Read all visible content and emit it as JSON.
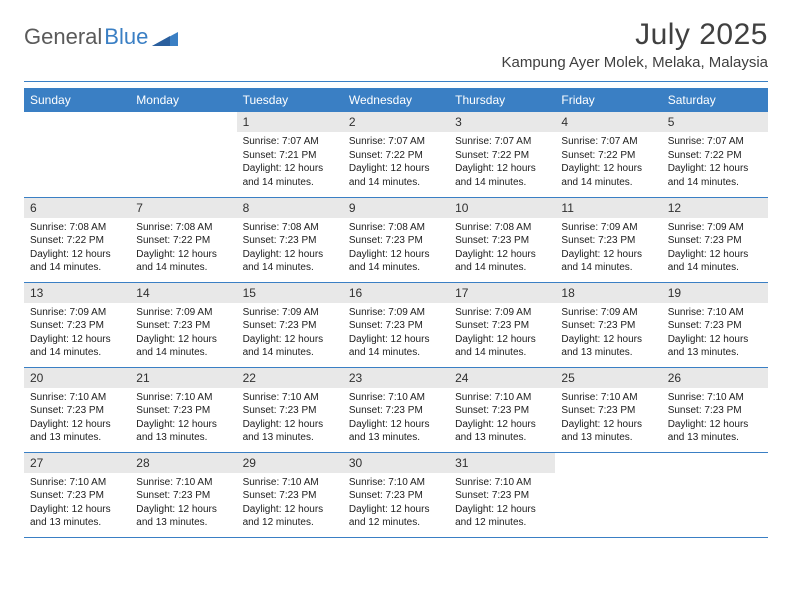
{
  "brand": {
    "part1": "General",
    "part2": "Blue"
  },
  "title": "July 2025",
  "location": "Kampung Ayer Molek, Melaka, Malaysia",
  "colors": {
    "header_bg": "#3a7fc4",
    "header_text": "#ffffff",
    "daynum_bg": "#e8e8e8",
    "rule": "#3a7fc4",
    "text": "#202020"
  },
  "weekdays": [
    "Sunday",
    "Monday",
    "Tuesday",
    "Wednesday",
    "Thursday",
    "Friday",
    "Saturday"
  ],
  "weeks": [
    [
      null,
      null,
      {
        "n": "1",
        "sr": "7:07 AM",
        "ss": "7:21 PM",
        "h": "12",
        "m": "14"
      },
      {
        "n": "2",
        "sr": "7:07 AM",
        "ss": "7:22 PM",
        "h": "12",
        "m": "14"
      },
      {
        "n": "3",
        "sr": "7:07 AM",
        "ss": "7:22 PM",
        "h": "12",
        "m": "14"
      },
      {
        "n": "4",
        "sr": "7:07 AM",
        "ss": "7:22 PM",
        "h": "12",
        "m": "14"
      },
      {
        "n": "5",
        "sr": "7:07 AM",
        "ss": "7:22 PM",
        "h": "12",
        "m": "14"
      }
    ],
    [
      {
        "n": "6",
        "sr": "7:08 AM",
        "ss": "7:22 PM",
        "h": "12",
        "m": "14"
      },
      {
        "n": "7",
        "sr": "7:08 AM",
        "ss": "7:22 PM",
        "h": "12",
        "m": "14"
      },
      {
        "n": "8",
        "sr": "7:08 AM",
        "ss": "7:23 PM",
        "h": "12",
        "m": "14"
      },
      {
        "n": "9",
        "sr": "7:08 AM",
        "ss": "7:23 PM",
        "h": "12",
        "m": "14"
      },
      {
        "n": "10",
        "sr": "7:08 AM",
        "ss": "7:23 PM",
        "h": "12",
        "m": "14"
      },
      {
        "n": "11",
        "sr": "7:09 AM",
        "ss": "7:23 PM",
        "h": "12",
        "m": "14"
      },
      {
        "n": "12",
        "sr": "7:09 AM",
        "ss": "7:23 PM",
        "h": "12",
        "m": "14"
      }
    ],
    [
      {
        "n": "13",
        "sr": "7:09 AM",
        "ss": "7:23 PM",
        "h": "12",
        "m": "14"
      },
      {
        "n": "14",
        "sr": "7:09 AM",
        "ss": "7:23 PM",
        "h": "12",
        "m": "14"
      },
      {
        "n": "15",
        "sr": "7:09 AM",
        "ss": "7:23 PM",
        "h": "12",
        "m": "14"
      },
      {
        "n": "16",
        "sr": "7:09 AM",
        "ss": "7:23 PM",
        "h": "12",
        "m": "14"
      },
      {
        "n": "17",
        "sr": "7:09 AM",
        "ss": "7:23 PM",
        "h": "12",
        "m": "14"
      },
      {
        "n": "18",
        "sr": "7:09 AM",
        "ss": "7:23 PM",
        "h": "12",
        "m": "13"
      },
      {
        "n": "19",
        "sr": "7:10 AM",
        "ss": "7:23 PM",
        "h": "12",
        "m": "13"
      }
    ],
    [
      {
        "n": "20",
        "sr": "7:10 AM",
        "ss": "7:23 PM",
        "h": "12",
        "m": "13"
      },
      {
        "n": "21",
        "sr": "7:10 AM",
        "ss": "7:23 PM",
        "h": "12",
        "m": "13"
      },
      {
        "n": "22",
        "sr": "7:10 AM",
        "ss": "7:23 PM",
        "h": "12",
        "m": "13"
      },
      {
        "n": "23",
        "sr": "7:10 AM",
        "ss": "7:23 PM",
        "h": "12",
        "m": "13"
      },
      {
        "n": "24",
        "sr": "7:10 AM",
        "ss": "7:23 PM",
        "h": "12",
        "m": "13"
      },
      {
        "n": "25",
        "sr": "7:10 AM",
        "ss": "7:23 PM",
        "h": "12",
        "m": "13"
      },
      {
        "n": "26",
        "sr": "7:10 AM",
        "ss": "7:23 PM",
        "h": "12",
        "m": "13"
      }
    ],
    [
      {
        "n": "27",
        "sr": "7:10 AM",
        "ss": "7:23 PM",
        "h": "12",
        "m": "13"
      },
      {
        "n": "28",
        "sr": "7:10 AM",
        "ss": "7:23 PM",
        "h": "12",
        "m": "13"
      },
      {
        "n": "29",
        "sr": "7:10 AM",
        "ss": "7:23 PM",
        "h": "12",
        "m": "12"
      },
      {
        "n": "30",
        "sr": "7:10 AM",
        "ss": "7:23 PM",
        "h": "12",
        "m": "12"
      },
      {
        "n": "31",
        "sr": "7:10 AM",
        "ss": "7:23 PM",
        "h": "12",
        "m": "12"
      },
      null,
      null
    ]
  ],
  "labels": {
    "sunrise": "Sunrise:",
    "sunset": "Sunset:",
    "daylight": "Daylight:",
    "hours": "hours",
    "and": "and",
    "minutes": "minutes."
  }
}
